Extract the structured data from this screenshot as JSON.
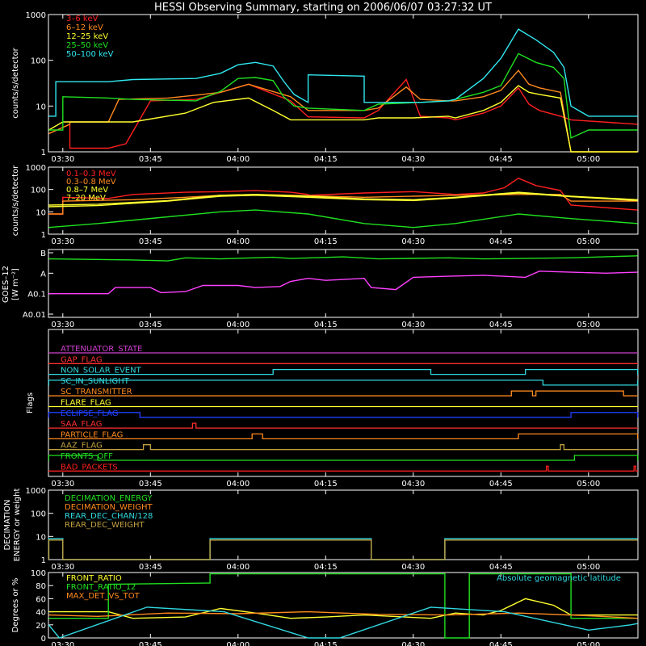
{
  "title": "HESSI Observing Summary, starting on 2006/06/07 03:27:32 UT",
  "time_ticks": [
    "03:30",
    "03:45",
    "04:00",
    "04:15",
    "04:30",
    "04:45",
    "05:00"
  ],
  "panels": {
    "count_rates_low": {
      "ylabel": "counts/s/detector",
      "yticks": [
        "1",
        "10",
        "100",
        "1000"
      ],
      "legend": [
        {
          "label": "3–6 keV",
          "color": "#ff2020"
        },
        {
          "label": "6–12 keV",
          "color": "#ff8a1e"
        },
        {
          "label": "12–25 keV",
          "color": "#ffff30"
        },
        {
          "label": "25–50 keV",
          "color": "#20e020"
        },
        {
          "label": "50–100 keV",
          "color": "#30e8f0"
        }
      ]
    },
    "count_rates_high": {
      "ylabel": "counts/s/detector",
      "yticks": [
        "1",
        "10",
        "100",
        "1000"
      ],
      "legend": [
        {
          "label": "0.1–0.3 MeV",
          "color": "#ff2020"
        },
        {
          "label": "0.3–0.8 MeV",
          "color": "#ff8a1e"
        },
        {
          "label": "0.8–7 MeV",
          "color": "#ffff30"
        },
        {
          "label": "7–20 MeV",
          "color": "#ffff30"
        }
      ]
    },
    "goes": {
      "ylabel": "GOES–12",
      "units": "[W m⁻²]",
      "yticks": [
        "A0.01",
        "A0.1",
        "A",
        "B"
      ]
    },
    "flags": {
      "ylabel": "Flags",
      "items": [
        {
          "label": "ATTENUATOR_STATE",
          "color": "#d040d0"
        },
        {
          "label": "GAP_FLAG",
          "color": "#ff3030"
        },
        {
          "label": "NON_SOLAR_EVENT",
          "color": "#30d8e0"
        },
        {
          "label": "SC_IN_SUNLIGHT",
          "color": "#30d8e0"
        },
        {
          "label": "SC_TRANSMITTER",
          "color": "#ff8a1e"
        },
        {
          "label": "FLARE_FLAG",
          "color": "#ffff30"
        },
        {
          "label": "ECLIPSE_FLAG",
          "color": "#2040ff"
        },
        {
          "label": "SAA_FLAG",
          "color": "#ff3030"
        },
        {
          "label": "PARTICLE_FLAG",
          "color": "#ff8a1e"
        },
        {
          "label": "AAZ_FLAG",
          "color": "#c0a040"
        },
        {
          "label": "FRONTS_OFF",
          "color": "#20e020"
        },
        {
          "label": "BAD_PACKETS",
          "color": "#ff2020"
        }
      ]
    },
    "decimation": {
      "ylabel": "DECIMATION ENERGY or weight",
      "yticks": [
        "1",
        "10",
        "100",
        "1000"
      ],
      "legend": [
        {
          "label": "DECIMATION_ENERGY",
          "color": "#20e020"
        },
        {
          "label": "DECIMATION_WEIGHT",
          "color": "#ff8a1e"
        },
        {
          "label": "REAR_DEC_CHAN/128",
          "color": "#30d8e0"
        },
        {
          "label": "REAR_DEC_WEIGHT",
          "color": "#c0a040"
        }
      ]
    },
    "ratios": {
      "ylabel": "Degrees or %",
      "yticks": [
        "0",
        "20",
        "40",
        "60",
        "80",
        "100"
      ],
      "legend": [
        {
          "label": "FRONT_RATIO",
          "color": "#ffff30"
        },
        {
          "label": "FRONT_RATIO_12",
          "color": "#20e020"
        },
        {
          "label": "MAX_DET_VS_TOT",
          "color": "#ff8a1e"
        }
      ],
      "annotation": {
        "label": "Absolute geomagnetic latitude",
        "color": "#30d8e0"
      }
    }
  },
  "chart_data": {
    "type": "line",
    "x_unit": "UT time (hours, decimal)",
    "xlim": [
      3.459,
      5.141
    ],
    "count_rates_low": {
      "ylim": [
        1,
        1000
      ],
      "scale": "log",
      "series": [
        {
          "name": "3–6 keV",
          "color": "#ff2020",
          "x": [
            3.46,
            3.52,
            3.52,
            3.63,
            3.68,
            3.75,
            3.88,
            3.93,
            4.03,
            4.15,
            4.2,
            4.36,
            4.4,
            4.48,
            4.52,
            4.6,
            4.62,
            4.7,
            4.75,
            4.8,
            4.83,
            4.86,
            4.92,
            4.95,
            5.14
          ],
          "y": [
            2.5,
            4,
            1.2,
            1.2,
            1.5,
            13,
            14,
            18,
            30,
            13,
            5.8,
            5.5,
            8,
            38,
            6,
            5.5,
            5,
            7,
            10,
            25,
            11,
            8,
            6,
            5,
            4
          ]
        },
        {
          "name": "6–12 keV",
          "color": "#ff8a1e",
          "x": [
            3.46,
            3.52,
            3.52,
            3.63,
            3.66,
            3.8,
            3.9,
            3.95,
            4.03,
            4.15,
            4.2,
            4.36,
            4.4,
            4.48,
            4.52,
            4.6,
            4.62,
            4.7,
            4.75,
            4.8,
            4.83,
            4.86,
            4.92,
            4.95,
            5.14
          ],
          "y": [
            2.5,
            4,
            4.5,
            4.5,
            14,
            15,
            18,
            20,
            30,
            16,
            8,
            8,
            9,
            26,
            14,
            13,
            13,
            16,
            22,
            60,
            30,
            25,
            20,
            1,
            1
          ]
        },
        {
          "name": "12–25 keV",
          "color": "#ffff30",
          "x": [
            3.46,
            3.5,
            3.52,
            3.7,
            3.85,
            3.93,
            4.03,
            4.1,
            4.15,
            4.2,
            4.36,
            4.4,
            4.5,
            4.6,
            4.62,
            4.7,
            4.75,
            4.8,
            4.83,
            4.86,
            4.92,
            4.95,
            5.14
          ],
          "y": [
            3,
            4.5,
            4.5,
            4.5,
            7,
            12,
            15,
            8,
            5,
            5,
            5,
            5.5,
            5.5,
            6,
            5.5,
            8,
            12,
            28,
            20,
            18,
            15,
            1,
            1
          ]
        },
        {
          "name": "25–50 keV",
          "color": "#20e020",
          "x": [
            3.46,
            3.5,
            3.5,
            3.63,
            3.7,
            3.88,
            3.95,
            4.0,
            4.05,
            4.1,
            4.13,
            4.16,
            4.2,
            4.36,
            4.4,
            4.52,
            4.6,
            4.62,
            4.7,
            4.75,
            4.8,
            4.85,
            4.9,
            4.93,
            4.95,
            5.0,
            5.14
          ],
          "y": [
            3,
            3,
            16,
            15,
            14,
            13,
            21,
            40,
            42,
            36,
            16,
            10,
            9,
            8,
            11,
            12,
            13,
            14,
            20,
            28,
            140,
            90,
            70,
            40,
            2,
            3,
            3
          ]
        },
        {
          "name": "50–100 keV",
          "color": "#30e8f0",
          "x": [
            3.46,
            3.48,
            3.48,
            3.63,
            3.7,
            3.88,
            3.95,
            4.0,
            4.05,
            4.1,
            4.13,
            4.16,
            4.2,
            4.2,
            4.36,
            4.36,
            4.4,
            4.52,
            4.6,
            4.62,
            4.7,
            4.75,
            4.8,
            4.85,
            4.9,
            4.93,
            4.95,
            5.0,
            5.14
          ],
          "y": [
            6,
            6,
            34,
            34,
            38,
            40,
            52,
            80,
            90,
            75,
            35,
            18,
            12,
            48,
            45,
            12,
            12,
            12,
            13,
            14,
            40,
            110,
            480,
            280,
            150,
            70,
            10,
            6,
            6
          ]
        }
      ]
    },
    "count_rates_high": {
      "ylim": [
        1,
        1000
      ],
      "scale": "log",
      "series": [
        {
          "name": "0.1–0.3 MeV",
          "color": "#ff2020",
          "x": [
            3.46,
            3.5,
            3.5,
            3.63,
            3.7,
            3.85,
            3.95,
            4.05,
            4.15,
            4.2,
            4.2,
            4.36,
            4.5,
            4.62,
            4.7,
            4.76,
            4.8,
            4.85,
            4.92,
            4.95,
            5.14
          ],
          "y": [
            8,
            8,
            45,
            40,
            60,
            75,
            80,
            90,
            75,
            60,
            55,
            70,
            80,
            60,
            70,
            120,
            320,
            150,
            90,
            20,
            12
          ]
        },
        {
          "name": "0.3–0.8 MeV",
          "color": "#ff8a1e",
          "x": [
            3.46,
            3.5,
            3.5,
            3.7,
            3.85,
            3.95,
            4.05,
            4.15,
            4.36,
            4.5,
            4.62,
            4.8,
            4.92,
            4.95,
            5.14
          ],
          "y": [
            8,
            8,
            30,
            35,
            45,
            55,
            60,
            55,
            45,
            50,
            55,
            60,
            60,
            30,
            30
          ]
        },
        {
          "name": "0.8–7 MeV",
          "color": "#ffff30",
          "x": [
            3.46,
            3.6,
            3.8,
            3.95,
            4.05,
            4.2,
            4.36,
            4.5,
            4.62,
            4.8,
            4.95,
            5.14
          ],
          "y": [
            20,
            22,
            32,
            55,
            60,
            50,
            38,
            35,
            45,
            75,
            50,
            35
          ]
        },
        {
          "name": "7–20 MeV",
          "color": "#ffff30",
          "x": [
            3.46,
            3.6,
            3.8,
            3.95,
            4.05,
            4.2,
            4.36,
            4.5,
            4.62,
            4.8,
            4.95,
            5.14
          ],
          "y": [
            17,
            19,
            30,
            50,
            55,
            45,
            35,
            32,
            42,
            70,
            48,
            32
          ]
        },
        {
          "name": "green (background)",
          "color": "#20e020",
          "x": [
            3.46,
            3.6,
            3.8,
            3.95,
            4.05,
            4.2,
            4.36,
            4.5,
            4.62,
            4.8,
            4.95,
            5.14
          ],
          "y": [
            2,
            3,
            6,
            10,
            12,
            8,
            3,
            2,
            3,
            8,
            5,
            3
          ]
        }
      ]
    },
    "goes": {
      "classes": [
        "A0.01",
        "A0.1",
        "A",
        "B"
      ],
      "series": [
        {
          "name": "long",
          "color": "#20e020",
          "x": [
            3.46,
            3.7,
            3.8,
            3.85,
            3.95,
            4.1,
            4.15,
            4.3,
            4.4,
            4.6,
            4.7,
            4.95,
            5.14
          ],
          "y": [
            2.7,
            2.65,
            2.6,
            2.75,
            2.7,
            2.78,
            2.72,
            2.8,
            2.7,
            2.75,
            2.7,
            2.75,
            2.85
          ]
        },
        {
          "name": "short",
          "color": "#ff40ff",
          "x": [
            3.46,
            3.63,
            3.65,
            3.75,
            3.78,
            3.85,
            3.9,
            4.0,
            4.05,
            4.12,
            4.15,
            4.2,
            4.25,
            4.36,
            4.38,
            4.45,
            4.5,
            4.6,
            4.7,
            4.82,
            4.86,
            4.95,
            5.05,
            5.14
          ],
          "y": [
            1.0,
            1.0,
            1.3,
            1.3,
            1.05,
            1.1,
            1.4,
            1.4,
            1.3,
            1.35,
            1.6,
            1.75,
            1.65,
            1.75,
            1.3,
            1.2,
            1.8,
            1.85,
            1.9,
            1.8,
            2.1,
            2.05,
            2.0,
            2.05
          ]
        }
      ]
    },
    "flags": {
      "high_intervals": {
        "NON_SOLAR_EVENT": [
          [
            4.1,
            4.55
          ],
          [
            4.82,
            5.14
          ]
        ],
        "SC_IN_SUNLIGHT": [
          [
            3.46,
            4.87
          ],
          [
            5.14,
            5.14
          ]
        ],
        "SC_TRANSMITTER": [
          [
            4.78,
            4.84
          ],
          [
            4.85,
            5.1
          ]
        ],
        "ECLIPSE_FLAG": [
          [
            3.46,
            3.72
          ],
          [
            4.95,
            5.14
          ]
        ],
        "SAA_FLAG": [
          [
            3.87,
            3.88
          ]
        ],
        "PARTICLE_FLAG": [
          [
            4.04,
            4.07
          ],
          [
            4.8,
            5.14
          ]
        ],
        "AAZ_FLAG": [
          [
            3.73,
            3.75
          ],
          [
            4.92,
            4.93
          ]
        ],
        "FRONTS_OFF": [
          [
            3.46,
            3.6
          ],
          [
            4.96,
            5.14
          ]
        ],
        "BAD_PACKETS": [
          [
            4.88,
            4.885
          ],
          [
            5.13,
            5.135
          ]
        ]
      }
    },
    "decimation": {
      "ylim": [
        1,
        1000
      ],
      "scale": "log",
      "series": [
        {
          "name": "REAR_DEC_CHAN/128",
          "color": "#30d8e0",
          "x": [
            3.46,
            3.46,
            3.5,
            3.5,
            3.92,
            3.92,
            4.38,
            4.38,
            4.59,
            4.59,
            5.14
          ],
          "y": [
            1,
            8,
            8,
            1,
            1,
            8,
            8,
            1,
            1,
            8,
            8
          ]
        },
        {
          "name": "REAR_DEC_WEIGHT",
          "color": "#c0a040",
          "x": [
            3.46,
            3.46,
            3.5,
            3.5,
            3.92,
            3.92,
            4.38,
            4.38,
            4.59,
            4.59,
            5.14
          ],
          "y": [
            1,
            7,
            7,
            1,
            1,
            7,
            7,
            1,
            1,
            7,
            7
          ]
        }
      ]
    },
    "ratios": {
      "ylim": [
        0,
        100
      ],
      "series": [
        {
          "name": "FRONT_RATIO",
          "color": "#ffff30",
          "x": [
            3.46,
            3.63,
            3.7,
            3.85,
            3.95,
            4.05,
            4.15,
            4.25,
            4.36,
            4.55,
            4.62,
            4.7,
            4.75,
            4.82,
            4.9,
            4.95,
            5.14
          ],
          "y": [
            40,
            40,
            30,
            32,
            45,
            38,
            30,
            32,
            35,
            30,
            38,
            35,
            42,
            60,
            50,
            35,
            35
          ]
        },
        {
          "name": "FRONT_RATIO_12",
          "color": "#20e020",
          "x": [
            3.46,
            3.63,
            3.63,
            3.92,
            3.92,
            4.38,
            4.59,
            4.59,
            4.66,
            4.66,
            4.9,
            4.9,
            4.95,
            4.95,
            5.14
          ],
          "y": [
            30,
            30,
            82,
            84,
            98,
            98,
            98,
            0,
            0,
            98,
            98,
            98,
            98,
            30,
            30
          ]
        },
        {
          "name": "MAX_DET_VS_TOT",
          "color": "#ff8a1e",
          "x": [
            3.46,
            3.6,
            3.8,
            4.0,
            4.2,
            4.4,
            4.6,
            4.8,
            5.0,
            5.14
          ],
          "y": [
            35,
            33,
            38,
            37,
            40,
            36,
            35,
            38,
            34,
            30
          ]
        },
        {
          "name": "Absolute geomagnetic latitude",
          "color": "#30d8e0",
          "x": [
            3.46,
            3.49,
            3.74,
            3.96,
            4.2,
            4.29,
            4.55,
            4.76,
            5.0,
            5.12,
            5.14
          ],
          "y": [
            20,
            0,
            47,
            40,
            0,
            0,
            47,
            40,
            12,
            20,
            22
          ]
        }
      ]
    }
  }
}
